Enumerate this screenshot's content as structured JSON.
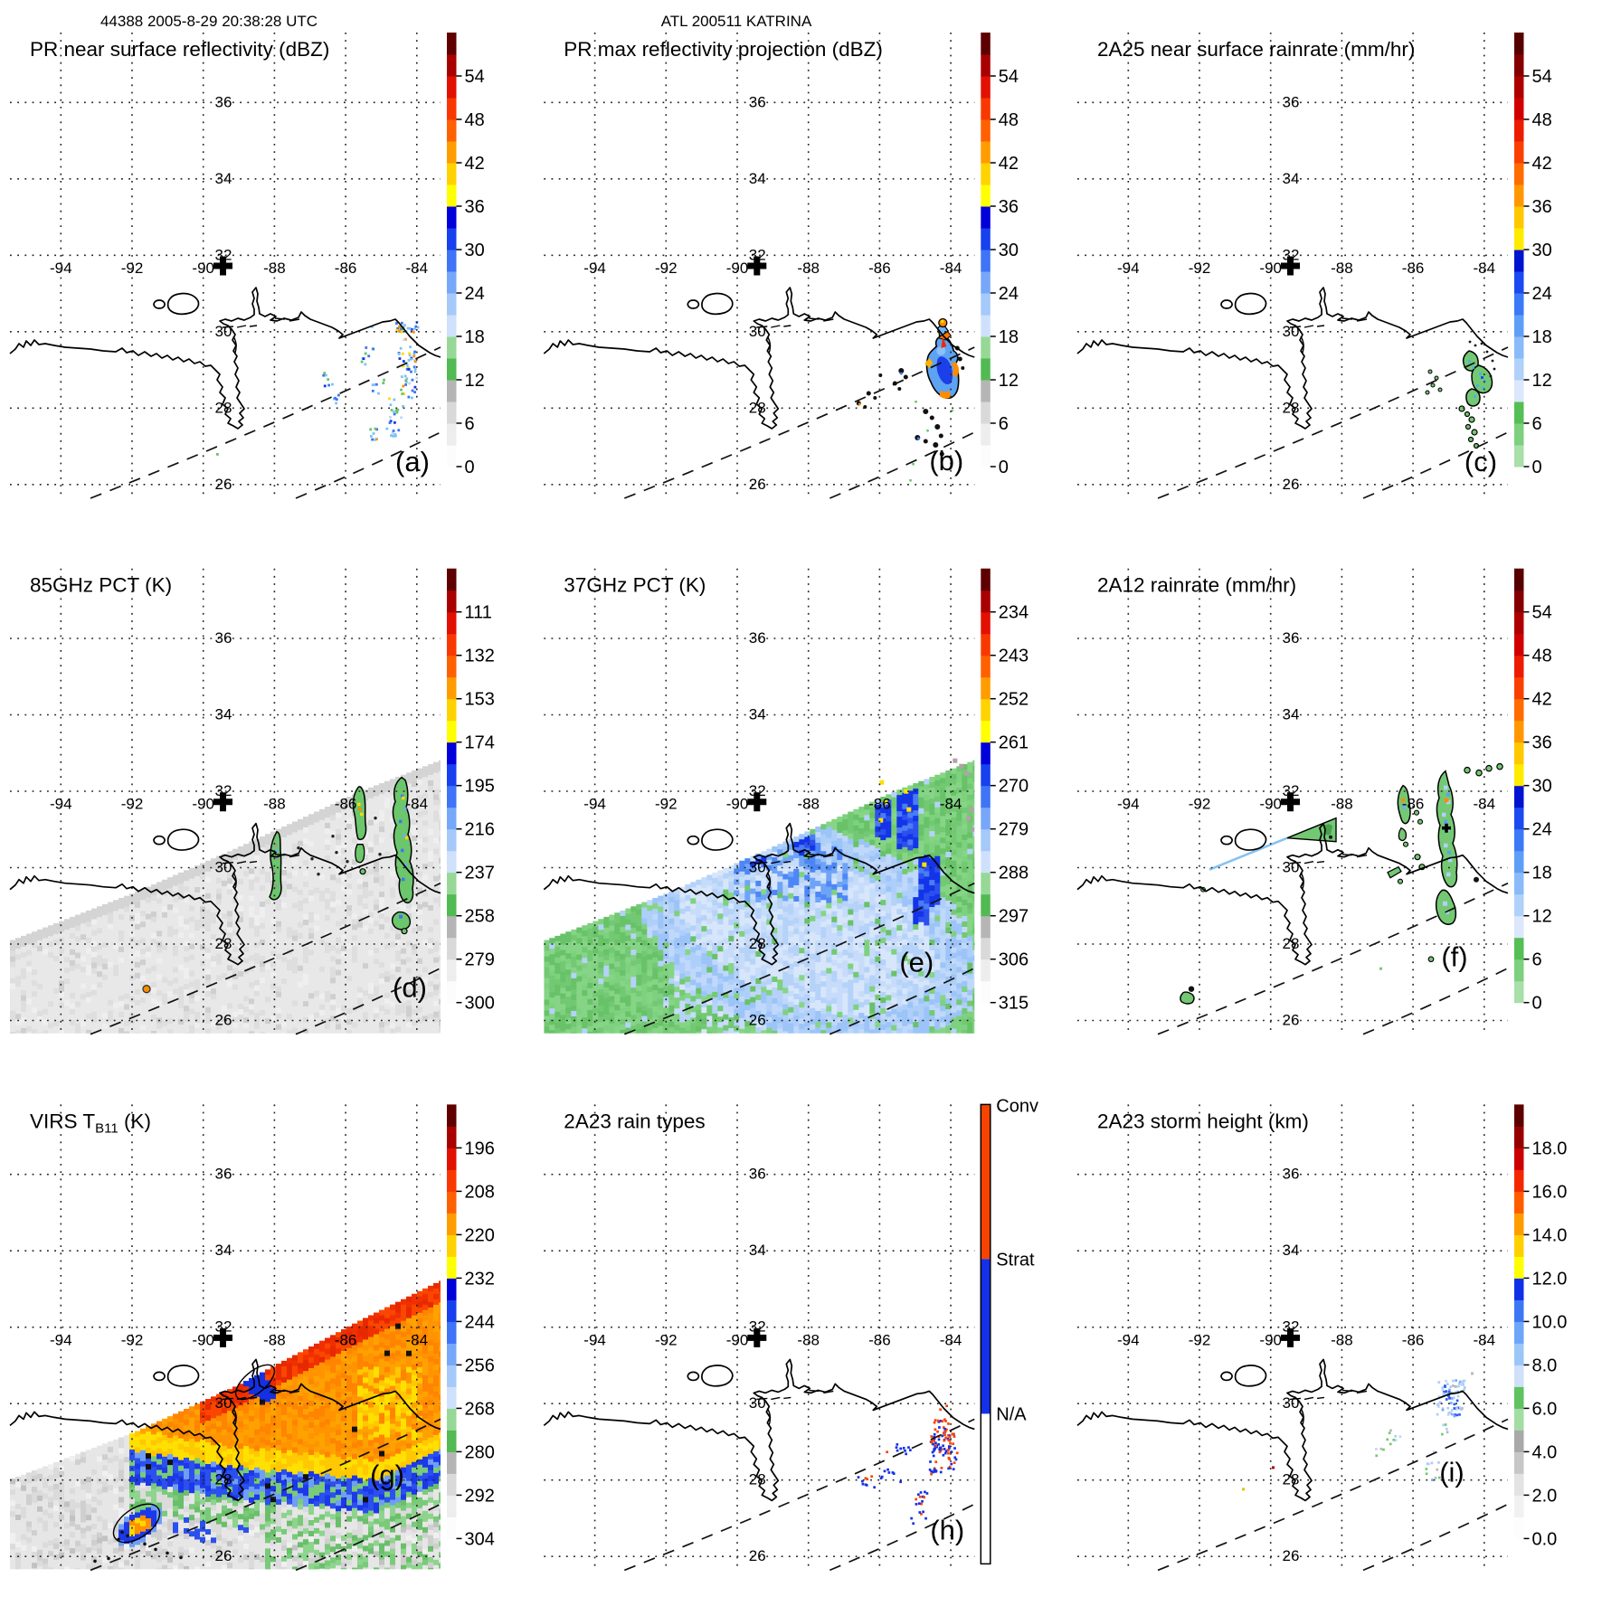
{
  "header": {
    "left_title": "44388 2005-8-29 20:38:28 UTC",
    "center_title": "ATL 200511 KATRINA"
  },
  "chart_data": {
    "type": "heatmap",
    "subtype": "satellite-overpass-map-grid",
    "storm": "ATL 200511 KATRINA",
    "overpass": "44388 2005-8-29 20:38:28 UTC",
    "lon_range": [
      -95.4,
      -83.3
    ],
    "lat_range": [
      25.4,
      37.8
    ],
    "lon_tick_labels": [
      "-94",
      "-92",
      "-90",
      "-88",
      "-86",
      "-84"
    ],
    "lat_tick_labels": [
      "36",
      "34",
      "32",
      "30",
      "28",
      "26"
    ],
    "grid": "dotted",
    "storm_center_marker": {
      "lon": -89.5,
      "lat": 31.7
    },
    "panels": [
      {
        "id": "a",
        "title": "PR near surface reflectivity (dBZ)",
        "corner_label": "(a)",
        "units": "dBZ",
        "palette": "dbz",
        "colorbar_ticks": [
          "54",
          "48",
          "42",
          "36",
          "30",
          "24",
          "18",
          "12",
          "6",
          "0"
        ],
        "features": "scattered convective cells 18-40 dBZ near -84.5 to -83.6 lon, 26.5-29.5 lat, offshore of Florida panhandle"
      },
      {
        "id": "b",
        "title": "PR max reflectivity projection (dBZ)",
        "corner_label": "(b)",
        "units": "dBZ",
        "palette": "dbz",
        "colorbar_ticks": [
          "54",
          "48",
          "42",
          "36",
          "30",
          "24",
          "18",
          "12",
          "6",
          "0"
        ],
        "features": "compact echo cluster near -84.3 lon 28.9 lat with 40-50 dBZ rim, trailing small cells southwest"
      },
      {
        "id": "c",
        "title": "2A25 near surface rainrate (mm/hr)",
        "corner_label": "(c)",
        "units": "mm/hr",
        "palette": "rain",
        "colorbar_ticks": [
          "54",
          "48",
          "42",
          "36",
          "30",
          "24",
          "18",
          "12",
          "6",
          "0"
        ],
        "features": "light rain patches below 12 mm/hr, black outlined, near -84.2 lon 27.5-29.3 lat"
      },
      {
        "id": "d",
        "title": "85GHz PCT (K)",
        "corner_label": "(d)",
        "units": "K",
        "palette": "dbz",
        "colorbar_ticks": [
          "111",
          "132",
          "153",
          "174",
          "195",
          "216",
          "237",
          "258",
          "279",
          "300"
        ],
        "features": "TMI swath gray background; ice scattering streaks 216-237 K along -85.8 and -84.3 lon; isolated cold cell near -91.9 lon 26.8 lat"
      },
      {
        "id": "e",
        "title": "37GHz PCT (K)",
        "corner_label": "(e)",
        "units": "K",
        "palette": "dbz",
        "colorbar_ticks": [
          "234",
          "243",
          "252",
          "261",
          "270",
          "279",
          "288",
          "297",
          "306",
          "315"
        ],
        "features": "wide TMI swath: ocean 279-288 K light blue, land 288-297 K green, rainband streaks 261-279 K dark blue near -84.5 lon"
      },
      {
        "id": "f",
        "title": "2A12 rainrate (mm/hr)",
        "corner_label": "(f)",
        "units": "mm/hr",
        "palette": "rain",
        "colorbar_ticks": [
          "54",
          "48",
          "42",
          "36",
          "30",
          "24",
          "18",
          "12",
          "6",
          "0"
        ],
        "features": "TMI rain bands below 9 mm/hr green along -85.9 and -84.3 lon; wedge over Mississippi coast; light blue scan-edge line near New Orleans"
      },
      {
        "id": "g",
        "title": "VIRS T_B11 (K)",
        "title_parts": {
          "prefix": "VIRS T",
          "sub": "B11",
          "suffix": " (K)"
        },
        "corner_label": "(g)",
        "units": "K",
        "palette": "dbz",
        "colorbar_ticks": [
          "196",
          "208",
          "220",
          "232",
          "244",
          "256",
          "268",
          "280",
          "292",
          "304"
        ],
        "features": "cold cloud canopy 208-232 K orange-red over rainbands, ragged 232-256 K blue edges, warm eye ~244 K, gray-green clear air southwest"
      },
      {
        "id": "h",
        "title": "2A23 rain types",
        "corner_label": "(h)",
        "palette": "types",
        "categories": [
          "Conv",
          "Strat",
          "N/A"
        ],
        "features": "convective orange-red and stratiform blue PR pixels near -84.3 lon, 27.3-29.4 lat"
      },
      {
        "id": "i",
        "title": "2A23 storm height (km)",
        "corner_label": "(i)",
        "units": "km",
        "palette": "height",
        "colorbar_ticks": [
          "18.0",
          "16.0",
          "14.0",
          "12.0",
          "10.0",
          "8.0",
          "6.0",
          "4.0",
          "2.0",
          "0.0"
        ],
        "features": "storm heights 6-10 km light blue near -84.3 lon 28.8 lat, few 10-12 km cores"
      }
    ]
  },
  "palettes": {
    "dbz": [
      "#fcfcfc",
      "#ededed",
      "#d9d9d9",
      "#b5b5b5",
      "#52ba52",
      "#97d897",
      "#cfe0fb",
      "#a5c9f9",
      "#77a7f8",
      "#3e74f6",
      "#1740ef",
      "#0000da",
      "#ffff00",
      "#ffd300",
      "#ff9c00",
      "#ff6000",
      "#f93800",
      "#e21000",
      "#a80000",
      "#5e0000"
    ],
    "rain": [
      "#a9dfa9",
      "#7ed07e",
      "#55bf55",
      "#dbe7fb",
      "#b0d1f9",
      "#8abbf8",
      "#5f9ef7",
      "#3a7af6",
      "#1b4af0",
      "#0013d0",
      "#ffeb00",
      "#ffc800",
      "#ff9800",
      "#ff6c00",
      "#fa4000",
      "#ec1c00",
      "#d10000",
      "#ae0000",
      "#840000",
      "#560000"
    ],
    "height": [
      "#fdfdfd",
      "#f1f1f1",
      "#e3e3e3",
      "#c7c7c7",
      "#a9a9a9",
      "#a3dda3",
      "#5fc35f",
      "#cfe0fa",
      "#9cc6f8",
      "#6da6f8",
      "#3c78f4",
      "#1030e8",
      "#ffff00",
      "#ffd000",
      "#ff9c00",
      "#ff5c00",
      "#f42800",
      "#cc0000",
      "#980000",
      "#5c0000"
    ],
    "types": {
      "conv": "#f84400",
      "strat": "#1430e8",
      "na": "#ffffff"
    }
  }
}
